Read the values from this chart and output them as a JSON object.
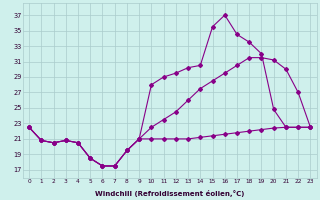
{
  "xlabel": "Windchill (Refroidissement éolien,°C)",
  "background_color": "#cff0ec",
  "grid_color": "#aacccc",
  "line_color": "#880088",
  "x_ticks": [
    0,
    1,
    2,
    3,
    4,
    5,
    6,
    7,
    8,
    9,
    10,
    11,
    12,
    13,
    14,
    15,
    16,
    17,
    18,
    19,
    20,
    21,
    22,
    23
  ],
  "y_ticks": [
    17,
    19,
    21,
    23,
    25,
    27,
    29,
    31,
    33,
    35,
    37
  ],
  "ylim": [
    16.0,
    38.5
  ],
  "xlim": [
    -0.5,
    23.5
  ],
  "series_flat": [
    22.5,
    20.8,
    20.5,
    20.8,
    20.5,
    18.5,
    17.5,
    17.5,
    19.5,
    21.0,
    21.0,
    21.0,
    21.0,
    21.0,
    21.2,
    21.4,
    21.6,
    21.8,
    22.0,
    22.2,
    22.4,
    22.5,
    22.5,
    22.5
  ],
  "series_mid": [
    22.5,
    20.8,
    20.5,
    20.8,
    20.5,
    18.5,
    17.5,
    17.5,
    19.5,
    21.0,
    22.5,
    23.5,
    24.5,
    26.0,
    27.5,
    28.5,
    29.5,
    30.5,
    31.5,
    31.5,
    31.2,
    30.0,
    27.0,
    22.5
  ],
  "series_top": [
    22.5,
    20.8,
    20.5,
    20.8,
    20.5,
    18.5,
    17.5,
    17.5,
    19.5,
    21.0,
    28.0,
    29.0,
    29.5,
    30.2,
    30.5,
    35.5,
    37.0,
    34.5,
    33.5,
    32.0,
    24.8,
    22.5,
    22.5,
    22.5
  ]
}
